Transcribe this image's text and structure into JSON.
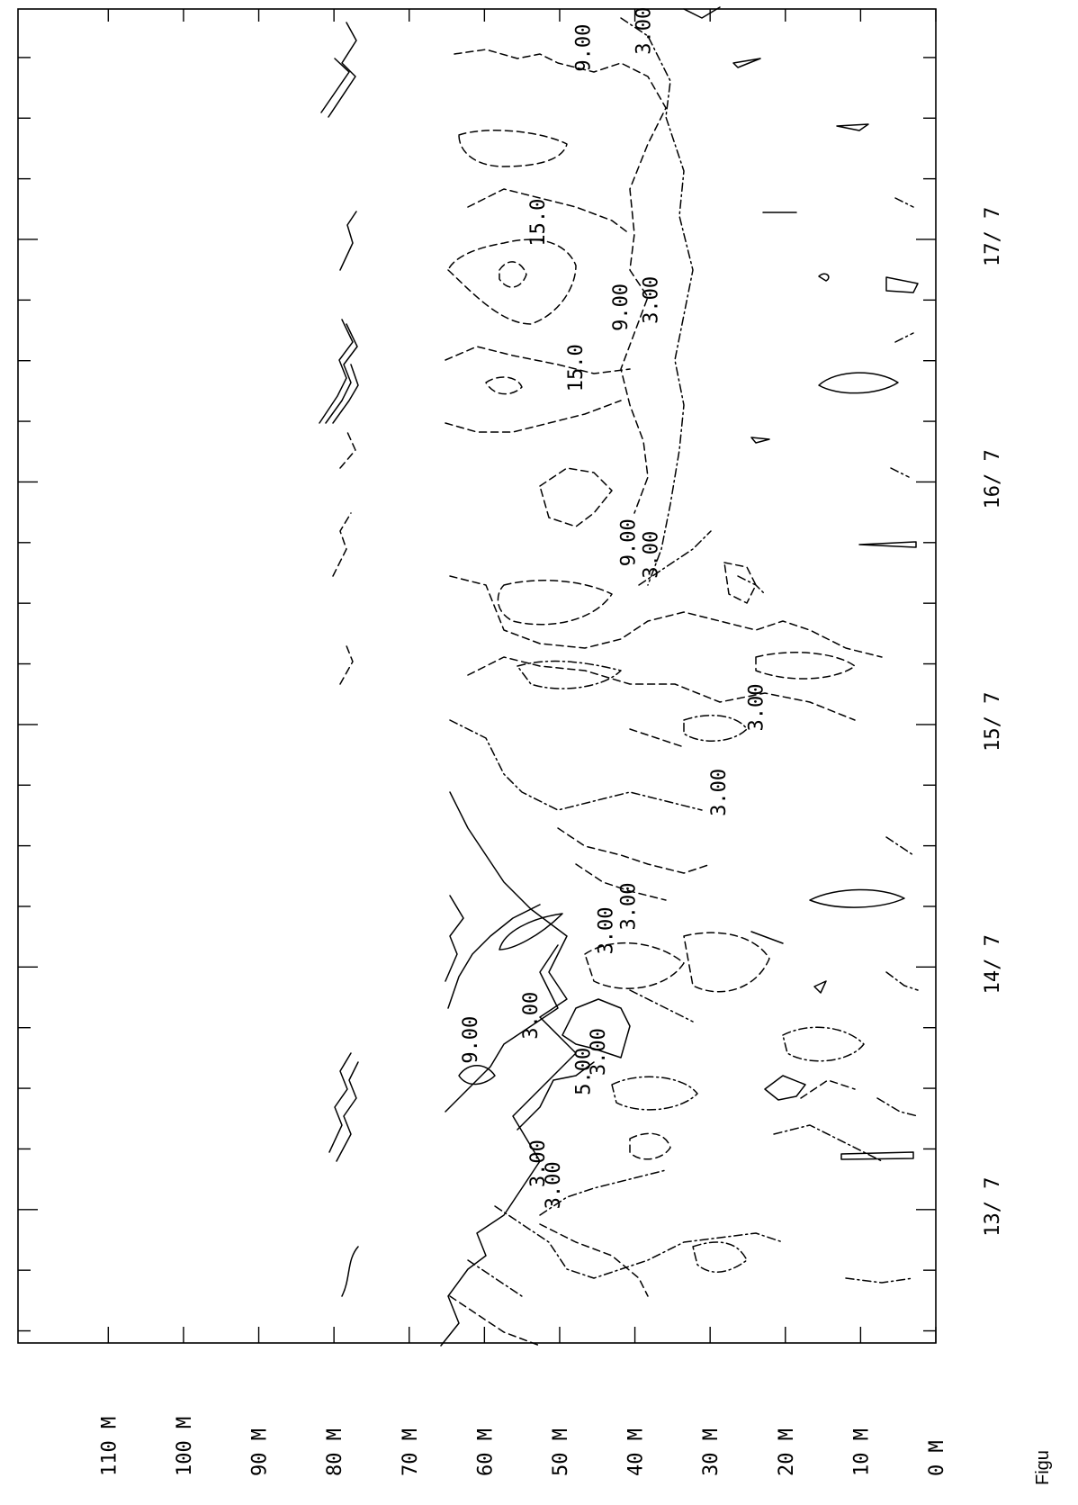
{
  "chart_data": {
    "type": "contour",
    "title": "",
    "depth_axis": {
      "ticks": [
        "0 M",
        "10 M",
        "20 M",
        "30 M",
        "40 M",
        "50 M",
        "60 M",
        "70 M",
        "80 M",
        "90 M",
        "100 M",
        "110 M"
      ],
      "values": [
        0,
        10,
        20,
        30,
        40,
        50,
        60,
        70,
        80,
        90,
        100,
        110
      ],
      "range": [
        0,
        122
      ]
    },
    "date_axis": {
      "ticks": [
        "13/ 7",
        "14/ 7",
        "15/ 7",
        "16/ 7",
        "17/ 7"
      ],
      "values": [
        13,
        14,
        15,
        16,
        17
      ],
      "range": [
        12.45,
        17.95
      ],
      "minor_per_day": 4
    },
    "contour_labels": [
      {
        "text": "9.00",
        "date": 17.79,
        "depth": 46
      },
      {
        "text": "3.00",
        "date": 17.86,
        "depth": 38
      },
      {
        "text": "15.0",
        "date": 17.07,
        "depth": 52
      },
      {
        "text": "9.00",
        "date": 16.72,
        "depth": 41
      },
      {
        "text": "3.00",
        "date": 16.75,
        "depth": 37
      },
      {
        "text": "15.0",
        "date": 16.47,
        "depth": 47
      },
      {
        "text": "9.00",
        "date": 15.75,
        "depth": 40
      },
      {
        "text": "3.00",
        "date": 15.7,
        "depth": 37
      },
      {
        "text": "3.00",
        "date": 15.07,
        "depth": 23
      },
      {
        "text": "3.00",
        "date": 14.72,
        "depth": 28
      },
      {
        "text": "3.00",
        "date": 14.25,
        "depth": 40
      },
      {
        "text": "3.00",
        "date": 14.15,
        "depth": 43
      },
      {
        "text": "3.00",
        "date": 13.8,
        "depth": 53
      },
      {
        "text": "3.00",
        "date": 13.65,
        "depth": 44
      },
      {
        "text": "9.00",
        "date": 13.7,
        "depth": 61
      },
      {
        "text": "5.00",
        "date": 13.57,
        "depth": 46
      },
      {
        "text": "3.00",
        "date": 13.19,
        "depth": 52
      },
      {
        "text": "3.00",
        "date": 13.1,
        "depth": 50
      }
    ],
    "caption": "Figu"
  }
}
